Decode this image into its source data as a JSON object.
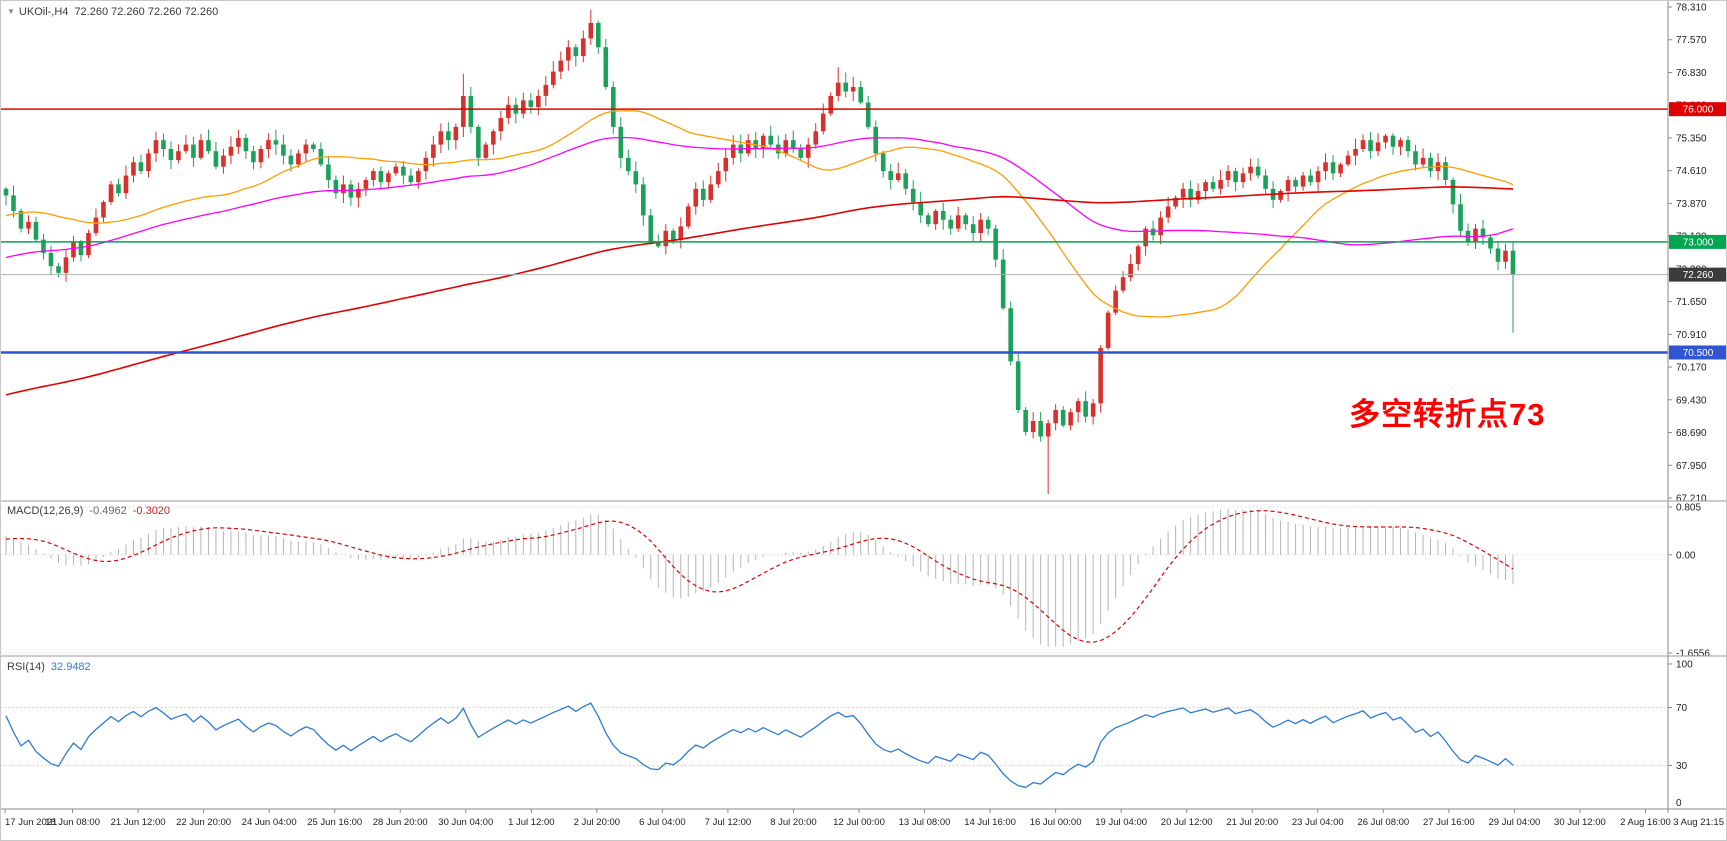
{
  "header": {
    "symbol": "UKOil-,H4",
    "ohlc": "72.260 72.260 72.260 72.260"
  },
  "annotation": {
    "text": "多空转折点73",
    "color": "#ff0000"
  },
  "indicator_labels": {
    "macd_name": "MACD(12,26,9)",
    "macd_main": "-0.4962",
    "macd_signal": "-0.3020",
    "rsi_name": "RSI(14)",
    "rsi_value": "32.9482"
  },
  "levels": [
    {
      "label": "76.000",
      "value": 76.0,
      "color": "#e00000",
      "width": 1.5,
      "name": "resistance-line-76"
    },
    {
      "label": "73.000",
      "value": 73.0,
      "color": "#00a650",
      "width": 1.5,
      "name": "support-line-73"
    },
    {
      "label": "70.500",
      "value": 70.5,
      "color": "#2f55d4",
      "width": 2.5,
      "name": "support-line-70-5"
    }
  ],
  "current_price": {
    "label": "72.260",
    "value": 72.26,
    "tag_color": "#3c3c3c",
    "line_color": "#b0b0b0"
  },
  "chart_data": {
    "type": "candlestick",
    "symbol": "UKOil",
    "timeframe": "H4",
    "title": "UKOil-,H4 72.260 72.260 72.260 72.260",
    "ylim": [
      67.21,
      78.31
    ],
    "grid": false,
    "price_axis_labels": [
      "78.310",
      "77.570",
      "76.830",
      "76.090",
      "75.350",
      "74.610",
      "73.870",
      "73.130",
      "72.390",
      "71.650",
      "70.910",
      "70.170",
      "69.430",
      "68.690",
      "67.950",
      "67.210"
    ],
    "x_labels": [
      "17 Jun 2021",
      "18 Jun 08:00",
      "21 Jun 12:00",
      "22 Jun 20:00",
      "24 Jun 04:00",
      "25 Jun 16:00",
      "28 Jun 20:00",
      "30 Jun 04:00",
      "1 Jul 12:00",
      "2 Jul 20:00",
      "6 Jul 04:00",
      "7 Jul 12:00",
      "8 Jul 20:00",
      "12 Jul 00:00",
      "13 Jul 08:00",
      "14 Jul 16:00",
      "16 Jul 00:00",
      "19 Jul 04:00",
      "20 Jul 12:00",
      "21 Jul 20:00",
      "23 Jul 04:00",
      "26 Jul 08:00",
      "27 Jul 16:00",
      "29 Jul 04:00",
      "30 Jul 12:00",
      "2 Aug 16:00",
      "3 Aug 21:15"
    ],
    "closes": [
      74.05,
      73.7,
      73.3,
      73.45,
      73.05,
      72.75,
      72.45,
      72.3,
      72.65,
      73.0,
      72.7,
      73.2,
      73.55,
      73.9,
      74.3,
      74.1,
      74.5,
      74.8,
      74.6,
      75.0,
      75.3,
      75.1,
      74.85,
      75.05,
      75.2,
      74.9,
      75.3,
      75.05,
      74.7,
      74.95,
      75.15,
      75.35,
      75.05,
      74.8,
      75.1,
      75.3,
      75.2,
      74.95,
      74.75,
      75.0,
      75.2,
      75.1,
      74.75,
      74.4,
      74.1,
      74.3,
      74.0,
      74.2,
      74.4,
      74.6,
      74.35,
      74.55,
      74.7,
      74.5,
      74.35,
      74.6,
      74.9,
      75.2,
      75.5,
      75.3,
      75.6,
      76.3,
      75.6,
      74.9,
      75.2,
      75.5,
      75.8,
      76.1,
      75.9,
      76.2,
      76.05,
      76.3,
      76.55,
      76.85,
      77.1,
      77.4,
      77.2,
      77.6,
      77.95,
      77.4,
      76.5,
      75.6,
      74.9,
      74.6,
      74.3,
      73.6,
      73.0,
      72.9,
      73.25,
      73.05,
      73.35,
      73.8,
      74.2,
      73.95,
      74.3,
      74.6,
      74.9,
      75.2,
      75.0,
      75.3,
      75.1,
      75.4,
      75.2,
      75.0,
      75.3,
      75.1,
      74.9,
      75.2,
      75.5,
      75.9,
      76.3,
      76.6,
      76.4,
      76.5,
      76.15,
      75.6,
      75.0,
      74.6,
      74.4,
      74.55,
      74.2,
      73.9,
      73.6,
      73.4,
      73.7,
      73.5,
      73.3,
      73.6,
      73.4,
      73.2,
      73.5,
      73.3,
      72.6,
      71.5,
      70.3,
      69.2,
      68.7,
      68.95,
      68.6,
      68.9,
      69.2,
      68.85,
      69.15,
      69.4,
      69.05,
      69.35,
      70.6,
      71.4,
      71.9,
      72.2,
      72.5,
      72.9,
      73.3,
      73.15,
      73.55,
      73.8,
      74.0,
      74.2,
      73.95,
      74.15,
      74.35,
      74.2,
      74.4,
      74.6,
      74.35,
      74.55,
      74.7,
      74.5,
      74.2,
      73.95,
      74.15,
      74.4,
      74.25,
      74.5,
      74.35,
      74.6,
      74.8,
      74.55,
      74.75,
      74.95,
      75.1,
      75.3,
      75.05,
      75.25,
      75.4,
      75.15,
      75.3,
      75.05,
      74.75,
      74.9,
      74.6,
      74.8,
      74.4,
      73.85,
      73.25,
      73.0,
      73.3,
      73.1,
      72.85,
      72.55,
      72.8,
      72.26
    ],
    "wick_overrides": {
      "61": {
        "h": 76.8
      },
      "78": {
        "h": 78.25
      },
      "111": {
        "h": 76.95
      },
      "139": {
        "l": 67.3
      },
      "201": {
        "l": 70.95
      }
    },
    "candle_colors": {
      "up": "#d8312b",
      "down": "#1ba159"
    },
    "moving_averages": [
      {
        "name": "fast",
        "period": 30,
        "color": "#ff9d00",
        "width": 1.3
      },
      {
        "name": "medium",
        "period": 65,
        "color": "#ff00ff",
        "width": 1.3
      },
      {
        "name": "slow",
        "period": 200,
        "color": "#e00000",
        "width": 1.6
      }
    ],
    "levels": [
      76.0,
      73.0,
      70.5
    ],
    "current_price": 72.26,
    "macd": {
      "params": [
        12,
        26,
        9
      ],
      "current_main": -0.4962,
      "current_signal": -0.302,
      "range": [
        -1.6556,
        0.805
      ],
      "axis_labels": [
        "0.805",
        "0.00",
        "-1.6556"
      ],
      "axis_values": [
        0.805,
        0,
        -1.6556
      ],
      "histogram_color": "#b4b4b4",
      "signal_color": "#e00000"
    },
    "rsi": {
      "params": [
        14
      ],
      "current": 32.9482,
      "range": [
        0,
        100
      ],
      "axis_labels": [
        "100",
        "70",
        "30",
        "0"
      ],
      "axis_values": [
        100,
        70,
        30,
        0
      ],
      "level_lines": [
        70,
        30
      ],
      "line_color": "#2e7bd6"
    }
  }
}
